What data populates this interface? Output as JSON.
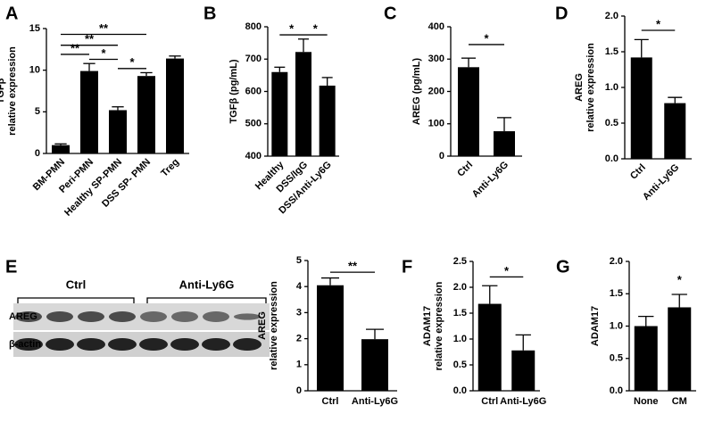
{
  "chart_data": [
    {
      "type": "bar",
      "panel": "A",
      "ylabel": [
        "TGFβ",
        "relative expression"
      ],
      "categories": [
        "BM-PMN",
        "Peri-PMN",
        "Healthy SP-PMN",
        "DSS SP- PMN",
        "Treg"
      ],
      "values": [
        1.0,
        9.9,
        5.2,
        9.3,
        11.4
      ],
      "errors": [
        0.15,
        0.9,
        0.4,
        0.4,
        0.3
      ],
      "color": "#000000",
      "ylim": [
        0,
        15
      ],
      "yticks": [
        0,
        5,
        10,
        15
      ],
      "annotations": [
        {
          "label": "**",
          "from": 0,
          "to": 3,
          "y": 14.3
        },
        {
          "label": "**",
          "from": 0,
          "to": 2,
          "y": 13.0
        },
        {
          "label": "**",
          "from": 0,
          "to": 1,
          "y": 11.9
        },
        {
          "label": "*",
          "from": 1,
          "to": 2,
          "y": 11.3
        },
        {
          "label": "*",
          "from": 2,
          "to": 3,
          "y": 10.2
        }
      ]
    },
    {
      "type": "bar",
      "panel": "B",
      "ylabel": [
        "TGFβ (pg/mL)"
      ],
      "categories": [
        "Healthy",
        "DSS/IgG",
        "DSS/Anti-Ly6G"
      ],
      "values": [
        660,
        722,
        618
      ],
      "errors": [
        15,
        40,
        25
      ],
      "color": "#000000",
      "ylim": [
        400,
        800
      ],
      "yticks": [
        400,
        500,
        600,
        700,
        800
      ],
      "annotations": [
        {
          "label": "*",
          "from": 0,
          "to": 1,
          "y": 775
        },
        {
          "label": "*",
          "from": 1,
          "to": 2,
          "y": 775
        }
      ]
    },
    {
      "type": "bar",
      "panel": "C",
      "ylabel": [
        "AREG (pg/mL)"
      ],
      "categories": [
        "Ctrl",
        "Anti-Ly6G"
      ],
      "values": [
        275,
        77
      ],
      "errors": [
        28,
        42
      ],
      "color": "#000000",
      "ylim": [
        0,
        400
      ],
      "yticks": [
        0,
        100,
        200,
        300,
        400
      ],
      "annotations": [
        {
          "label": "*",
          "from": 0,
          "to": 1,
          "y": 345
        }
      ]
    },
    {
      "type": "bar",
      "panel": "D",
      "ylabel": [
        "AREG",
        "relative expression"
      ],
      "categories": [
        "Ctrl",
        "Anti-Ly6G"
      ],
      "values": [
        1.42,
        0.78
      ],
      "errors": [
        0.25,
        0.08
      ],
      "color": "#000000",
      "ylim": [
        0,
        2
      ],
      "yticks": [
        {
          "value": 0,
          "label": "0.0"
        },
        {
          "value": 0.5,
          "label": "0.5"
        },
        {
          "value": 1,
          "label": "1.0"
        },
        {
          "value": 1.5,
          "label": "1.5"
        },
        {
          "value": 2,
          "label": "2.0"
        }
      ],
      "annotations": [
        {
          "label": "*",
          "from": 0,
          "to": 1,
          "y": 1.8
        }
      ]
    },
    {
      "type": "bar",
      "panel": "E",
      "ylabel": [
        "AREG",
        "relative expression"
      ],
      "categories": [
        "Ctrl",
        "Anti-Ly6G"
      ],
      "values": [
        4.05,
        1.98
      ],
      "errors": [
        0.28,
        0.38
      ],
      "color": "#000000",
      "ylim": [
        0,
        5
      ],
      "yticks": [
        0,
        1,
        2,
        3,
        4,
        5
      ],
      "annotations": [
        {
          "label": "**",
          "from": 0,
          "to": 1,
          "y": 4.55
        }
      ]
    },
    {
      "type": "bar",
      "panel": "F",
      "ylabel": [
        "ADAM17",
        "relative expression"
      ],
      "categories": [
        "Ctrl",
        "Anti-Ly6G"
      ],
      "values": [
        1.68,
        0.78
      ],
      "errors": [
        0.35,
        0.3
      ],
      "color": "#000000",
      "ylim": [
        0,
        2.5
      ],
      "yticks": [
        {
          "value": 0,
          "label": "0.0"
        },
        {
          "value": 0.5,
          "label": "0.5"
        },
        {
          "value": 1,
          "label": "1.0"
        },
        {
          "value": 1.5,
          "label": "1.5"
        },
        {
          "value": 2,
          "label": "2.0"
        },
        {
          "value": 2.5,
          "label": "2.5"
        }
      ],
      "annotations": [
        {
          "label": "*",
          "from": 0,
          "to": 1,
          "y": 2.2
        }
      ]
    },
    {
      "type": "bar",
      "panel": "G",
      "ylabel": [
        "ADAM17"
      ],
      "categories": [
        "None",
        "CM"
      ],
      "values": [
        1.0,
        1.29
      ],
      "errors": [
        0.15,
        0.2
      ],
      "color": "#000000",
      "ylim": [
        0,
        2
      ],
      "yticks": [
        {
          "value": 0,
          "label": "0.0"
        },
        {
          "value": 0.5,
          "label": "0.5"
        },
        {
          "value": 1,
          "label": "1.0"
        },
        {
          "value": 1.5,
          "label": "1.5"
        },
        {
          "value": 2,
          "label": "2.0"
        }
      ],
      "annotations": [
        {
          "label": "*",
          "from": 1,
          "to": 1,
          "y": 1.62
        }
      ]
    }
  ],
  "blot": {
    "groups": [
      "Ctrl",
      "Anti-Ly6G"
    ],
    "rows": [
      "AREG",
      "β-actin"
    ]
  }
}
